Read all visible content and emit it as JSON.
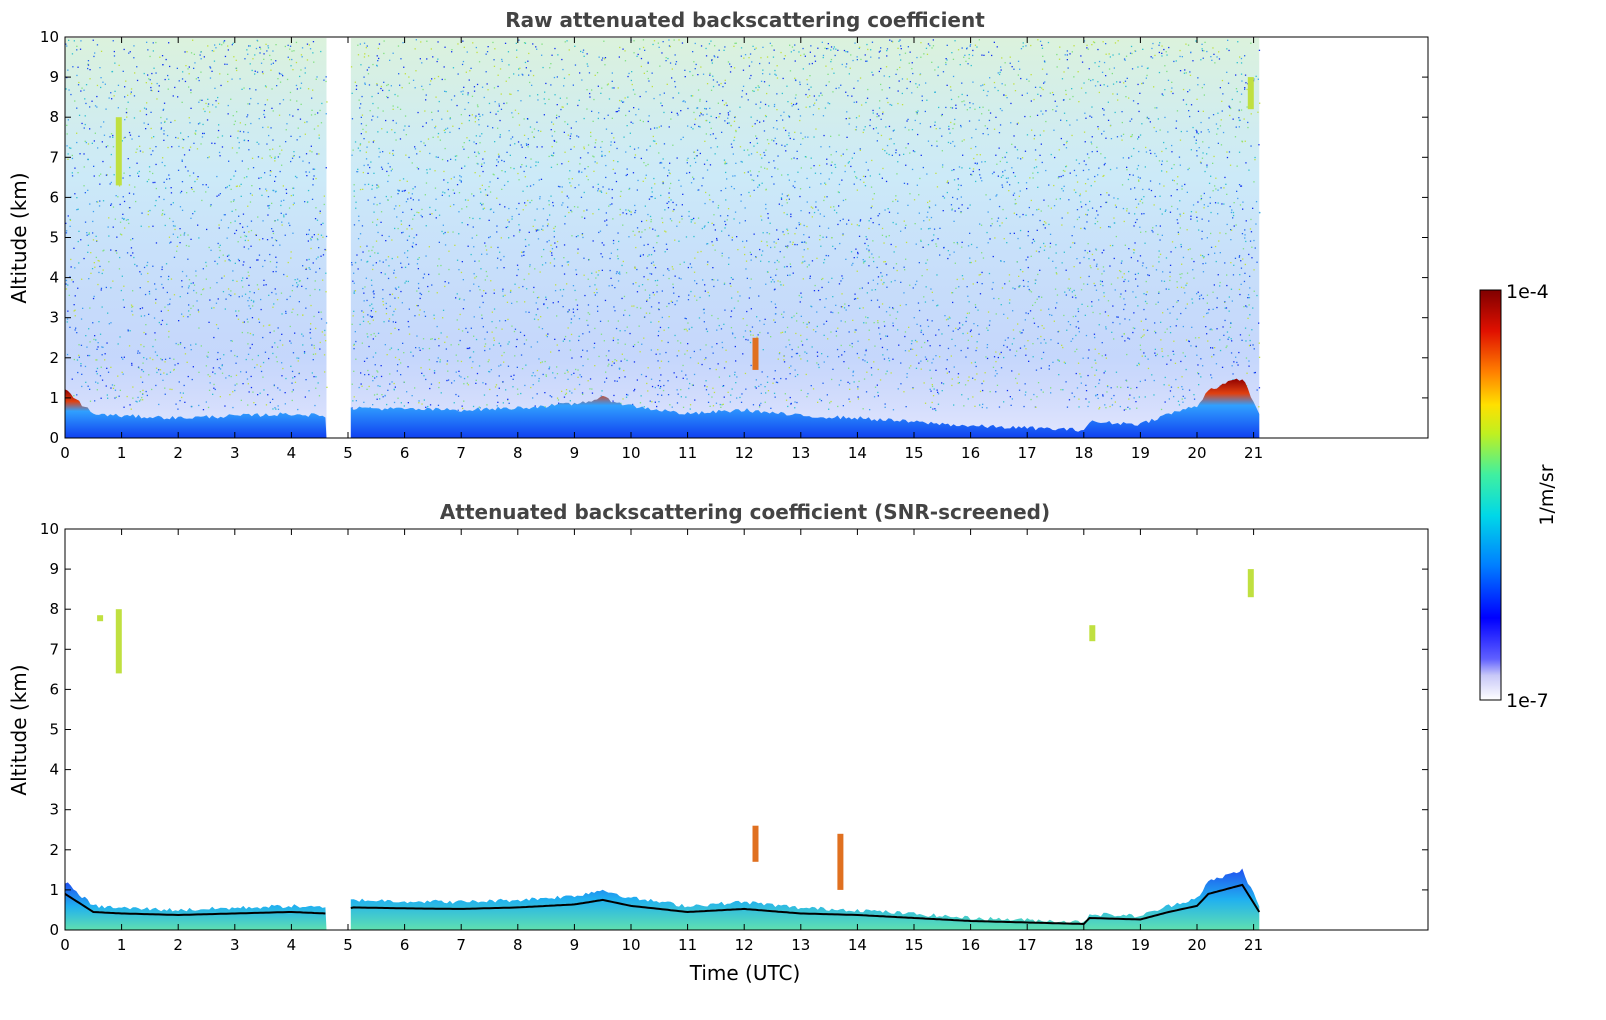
{
  "chart_data": [
    {
      "type": "heatmap",
      "title": "Raw attenuated backscattering coefficient",
      "xlabel": "",
      "ylabel": "Altitude (km)",
      "xlim": [
        0,
        24
      ],
      "ylim": [
        0,
        10
      ],
      "xticks": [
        0,
        1,
        2,
        3,
        4,
        5,
        6,
        7,
        8,
        9,
        10,
        11,
        12,
        13,
        14,
        15,
        16,
        17,
        18,
        19,
        20,
        21
      ],
      "yticks": [
        0,
        1,
        2,
        3,
        4,
        5,
        6,
        7,
        8,
        9,
        10
      ],
      "data_coverage_hours": [
        [
          0,
          4.62
        ],
        [
          5.05,
          21.1
        ]
      ],
      "noise_column_top_km": 10,
      "boundary_layer_top_km": [
        [
          0,
          1.2
        ],
        [
          0.5,
          0.6
        ],
        [
          1,
          0.55
        ],
        [
          2,
          0.5
        ],
        [
          3,
          0.55
        ],
        [
          4,
          0.6
        ],
        [
          4.6,
          0.55
        ],
        [
          5.1,
          0.75
        ],
        [
          6,
          0.72
        ],
        [
          7,
          0.7
        ],
        [
          8,
          0.75
        ],
        [
          9,
          0.85
        ],
        [
          9.5,
          1.0
        ],
        [
          10,
          0.8
        ],
        [
          11,
          0.6
        ],
        [
          12,
          0.7
        ],
        [
          13,
          0.55
        ],
        [
          14,
          0.5
        ],
        [
          15,
          0.4
        ],
        [
          16,
          0.3
        ],
        [
          17,
          0.25
        ],
        [
          18,
          0.2
        ],
        [
          18.1,
          0.4
        ],
        [
          19,
          0.35
        ],
        [
          19.5,
          0.6
        ],
        [
          20,
          0.8
        ],
        [
          20.2,
          1.2
        ],
        [
          20.8,
          1.5
        ],
        [
          21.1,
          0.6
        ]
      ],
      "features": [
        {
          "label": "cloud",
          "time": 0.95,
          "alt_min": 6.3,
          "alt_max": 8.0
        },
        {
          "label": "cloud",
          "time": 12.2,
          "alt_min": 1.7,
          "alt_max": 2.5
        },
        {
          "label": "cloud",
          "time": 20.95,
          "alt_min": 8.2,
          "alt_max": 9.0
        }
      ]
    },
    {
      "type": "heatmap",
      "title": "Attenuated backscattering coefficient (SNR-screened)",
      "xlabel": "Time (UTC)",
      "ylabel": "Altitude (km)",
      "xlim": [
        0,
        24
      ],
      "ylim": [
        0,
        10
      ],
      "xticks": [
        0,
        1,
        2,
        3,
        4,
        5,
        6,
        7,
        8,
        9,
        10,
        11,
        12,
        13,
        14,
        15,
        16,
        17,
        18,
        19,
        20,
        21
      ],
      "yticks": [
        0,
        1,
        2,
        3,
        4,
        5,
        6,
        7,
        8,
        9,
        10
      ],
      "data_coverage_hours": [
        [
          0,
          4.62
        ],
        [
          5.05,
          21.1
        ]
      ],
      "features": [
        {
          "label": "cloud",
          "time": 0.62,
          "alt_min": 7.7,
          "alt_max": 7.85
        },
        {
          "label": "cloud",
          "time": 0.95,
          "alt_min": 6.4,
          "alt_max": 8.0
        },
        {
          "label": "cloud",
          "time": 12.2,
          "alt_min": 1.7,
          "alt_max": 2.6
        },
        {
          "label": "cloud",
          "time": 13.7,
          "alt_min": 1.0,
          "alt_max": 2.4
        },
        {
          "label": "cloud",
          "time": 18.15,
          "alt_min": 7.2,
          "alt_max": 7.6
        },
        {
          "label": "cloud",
          "time": 20.95,
          "alt_min": 8.3,
          "alt_max": 9.0
        }
      ]
    }
  ],
  "colorbar": {
    "label": "1/m/sr",
    "max_label": "1e-4",
    "min_label": "1e-7",
    "colors": [
      "#ffffff",
      "#d8d8f8",
      "#a8a8f8",
      "#6060ff",
      "#0000ff",
      "#0050ff",
      "#00a0ff",
      "#00e0e0",
      "#30f0a0",
      "#a0f040",
      "#f0f000",
      "#ffb000",
      "#ff6000",
      "#e00000",
      "#800000"
    ]
  }
}
